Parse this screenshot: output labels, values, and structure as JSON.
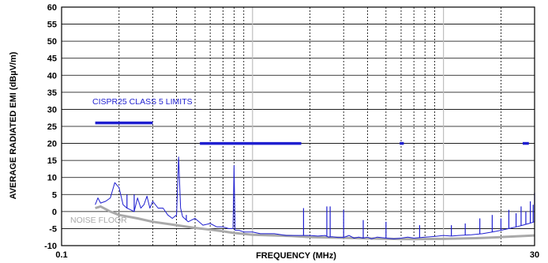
{
  "chart_data": {
    "type": "line",
    "title": "",
    "xlabel": "FREQUENCY (MHz)",
    "ylabel": "AVERAGE RADIATED EMI (dBµV/m)",
    "xscale": "log",
    "xlim": [
      0.1,
      30
    ],
    "ylim": [
      -10,
      60
    ],
    "x_tick_labels": [
      "0.1",
      "30"
    ],
    "y_ticks": [
      -10,
      -5,
      0,
      5,
      10,
      15,
      20,
      25,
      30,
      35,
      40,
      45,
      50,
      55,
      60
    ],
    "grid": true,
    "colors": {
      "emission": "#1f1fd0",
      "limit": "#1f1fd0",
      "noise": "#a9a9a9",
      "grid_minor": "#000000",
      "grid_major": "#bfbfbf"
    },
    "annotations": [
      {
        "text": "CISPR25 CLASS 5 LIMITS",
        "color": "#1f1fd0"
      },
      {
        "text": "NOISE FLOOR",
        "color": "#a9a9a9"
      }
    ],
    "limit_segments": [
      {
        "x": [
          0.15,
          0.3
        ],
        "y": 26
      },
      {
        "x": [
          0.53,
          1.8
        ],
        "y": 20
      },
      {
        "x": [
          5.9,
          6.2
        ],
        "y": 20
      },
      {
        "x": [
          26,
          28
        ],
        "y": 20
      }
    ],
    "series": [
      {
        "name": "NOISE FLOOR",
        "x": [
          0.15,
          0.16,
          0.18,
          0.2,
          0.25,
          0.3,
          0.4,
          0.5,
          0.6,
          0.7,
          0.8,
          1.0,
          1.3,
          1.6,
          2.0,
          3.0,
          4.0,
          5.0,
          7.0,
          10.0,
          15.0,
          20.0,
          30.0
        ],
        "y": [
          1.0,
          1.5,
          0.0,
          -1.0,
          -2.0,
          -3.0,
          -4.0,
          -4.8,
          -5.3,
          -5.8,
          -6.3,
          -6.8,
          -7.0,
          -7.2,
          -7.5,
          -7.7,
          -7.9,
          -8.0,
          -8.1,
          -8.0,
          -7.8,
          -7.5,
          -7.0
        ]
      },
      {
        "name": "",
        "x": [
          0.15,
          0.155,
          0.16,
          0.17,
          0.18,
          0.19,
          0.2,
          0.21,
          0.22,
          0.23,
          0.24,
          0.25,
          0.26,
          0.27,
          0.28,
          0.29,
          0.3,
          0.32,
          0.34,
          0.36,
          0.38,
          0.4,
          0.41,
          0.42,
          0.43,
          0.44,
          0.46,
          0.48,
          0.5,
          0.55,
          0.6,
          0.65,
          0.7,
          0.75,
          0.79,
          0.8,
          0.81,
          0.85,
          0.9,
          1.0,
          1.1,
          1.2,
          1.3,
          1.5,
          1.7,
          2.0,
          2.2,
          2.4,
          2.5,
          2.6,
          2.8,
          3.0,
          3.2,
          3.4,
          3.6,
          3.8,
          4.0,
          4.2,
          4.5,
          5.0,
          5.5,
          6.0,
          6.5,
          7.0,
          8.0,
          9.0,
          10.0,
          11.0,
          12.0,
          14.0,
          16.0,
          18.0,
          20.0,
          22.0,
          24.0,
          26.0,
          28.0,
          30.0
        ],
        "y": [
          2.0,
          4.0,
          2.5,
          3.0,
          4.0,
          8.5,
          7.0,
          2.0,
          1.0,
          0.5,
          0.0,
          4.0,
          1.0,
          2.0,
          4.5,
          1.0,
          3.0,
          1.0,
          1.0,
          -1.0,
          -2.0,
          -1.0,
          16.0,
          1.0,
          -1.5,
          -2.0,
          -3.0,
          -2.5,
          -2.0,
          -4.0,
          -3.5,
          -4.5,
          -4.5,
          -5.0,
          -5.0,
          13.5,
          -5.5,
          -5.5,
          -6.0,
          -6.0,
          -6.5,
          -6.5,
          -6.5,
          -7.0,
          -7.0,
          -7.0,
          -7.2,
          -7.0,
          -7.5,
          -7.4,
          -7.6,
          -7.6,
          -7.0,
          -7.8,
          -7.5,
          -7.8,
          -7.5,
          -8.0,
          -7.5,
          -7.8,
          -8.0,
          -7.8,
          -7.5,
          -7.8,
          -7.5,
          -7.3,
          -7.0,
          -7.2,
          -7.0,
          -6.8,
          -6.5,
          -6.0,
          -5.5,
          -5.0,
          -4.5,
          -4.0,
          -3.5,
          -3.0
        ]
      }
    ],
    "spurs": [
      {
        "x": 0.22,
        "y": 5.0
      },
      {
        "x": 0.24,
        "y": 5.0
      },
      {
        "x": 0.25,
        "y": 4.0
      },
      {
        "x": 0.28,
        "y": 4.0
      },
      {
        "x": 0.41,
        "y": 16.0
      },
      {
        "x": 0.45,
        "y": -1.0
      },
      {
        "x": 0.8,
        "y": 13.5
      },
      {
        "x": 1.85,
        "y": 1.0
      },
      {
        "x": 2.45,
        "y": 1.5
      },
      {
        "x": 2.55,
        "y": 1.5
      },
      {
        "x": 3.0,
        "y": 0.5
      },
      {
        "x": 3.8,
        "y": -2.5
      },
      {
        "x": 5.0,
        "y": -3.0
      },
      {
        "x": 7.5,
        "y": -4.0
      },
      {
        "x": 11.0,
        "y": -4.0
      },
      {
        "x": 13.0,
        "y": -3.5
      },
      {
        "x": 15.5,
        "y": -2.0
      },
      {
        "x": 18.0,
        "y": -1.0
      },
      {
        "x": 20.0,
        "y": -2.0
      },
      {
        "x": 22.0,
        "y": 0.5
      },
      {
        "x": 24.0,
        "y": -0.5
      },
      {
        "x": 25.5,
        "y": 1.5
      },
      {
        "x": 27.0,
        "y": 0.0
      },
      {
        "x": 28.5,
        "y": 3.0
      },
      {
        "x": 29.5,
        "y": 2.0
      },
      {
        "x": 30.0,
        "y": 5.5
      }
    ]
  }
}
